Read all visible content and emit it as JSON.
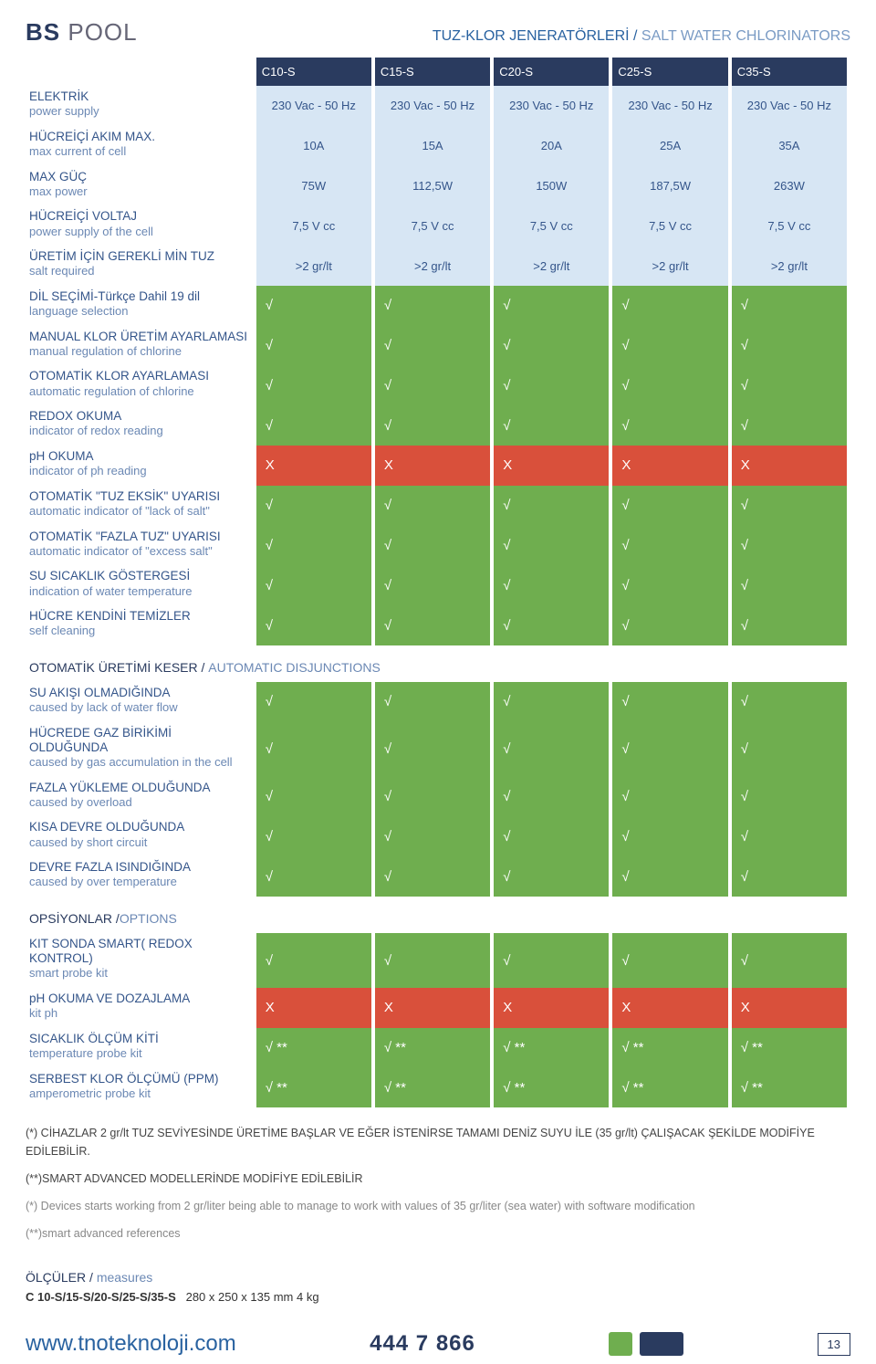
{
  "brand": {
    "logo1": "BS",
    "logo2": "POOL"
  },
  "page_title": {
    "tk": "TUZ-KLOR JENERATÖRLERİ",
    "en": "SALT WATER CHLORINATORS",
    "sep": " / "
  },
  "columns": [
    "C10-S",
    "C15-S",
    "C20-S",
    "C25-S",
    "C35-S"
  ],
  "specs": [
    {
      "tk": "ELEKTRİK",
      "en": "power supply",
      "v": [
        "230 Vac - 50 Hz",
        "230 Vac - 50 Hz",
        "230 Vac - 50 Hz",
        "230 Vac - 50 Hz",
        "230 Vac - 50 Hz"
      ]
    },
    {
      "tk": "HÜCREİÇİ AKIM MAX.",
      "en": "max current of cell",
      "v": [
        "10A",
        "15A",
        "20A",
        "25A",
        "35A"
      ]
    },
    {
      "tk": "MAX GÜÇ",
      "en": "max power",
      "v": [
        "75W",
        "112,5W",
        "150W",
        "187,5W",
        "263W"
      ]
    },
    {
      "tk": "HÜCREİÇİ VOLTAJ",
      "en": "power supply of the cell",
      "v": [
        "7,5 V cc",
        "7,5 V cc",
        "7,5 V cc",
        "7,5 V cc",
        "7,5 V cc"
      ]
    },
    {
      "tk": "ÜRETİM İÇİN GEREKLİ MİN TUZ",
      "en": "salt required",
      "v": [
        ">2 gr/lt",
        ">2 gr/lt",
        ">2 gr/lt",
        ">2 gr/lt",
        ">2 gr/lt"
      ]
    }
  ],
  "feat": [
    {
      "tk": "DİL SEÇİMİ-Türkçe Dahil 19 dil",
      "en": "language selection",
      "t": [
        "g",
        "g",
        "g",
        "g",
        "g"
      ],
      "s": [
        "√",
        "√",
        "√",
        "√",
        "√"
      ]
    },
    {
      "tk": "MANUAL KLOR ÜRETİM AYARLAMASI",
      "en": "manual regulation of chlorine",
      "t": [
        "g",
        "g",
        "g",
        "g",
        "g"
      ],
      "s": [
        "√",
        "√",
        "√",
        "√",
        "√"
      ]
    },
    {
      "tk": "OTOMATİK KLOR AYARLAMASI",
      "en": "automatic regulation of chlorine",
      "t": [
        "g",
        "g",
        "g",
        "g",
        "g"
      ],
      "s": [
        "√",
        "√",
        "√",
        "√",
        "√"
      ]
    },
    {
      "tk": "REDOX OKUMA",
      "en": "indicator of redox reading",
      "t": [
        "g",
        "g",
        "g",
        "g",
        "g"
      ],
      "s": [
        "√",
        "√",
        "√",
        "√",
        "√"
      ]
    },
    {
      "tk": "pH OKUMA",
      "en": "indicator of ph reading",
      "t": [
        "r",
        "r",
        "r",
        "r",
        "r"
      ],
      "s": [
        "X",
        "X",
        "X",
        "X",
        "X"
      ]
    },
    {
      "tk": "OTOMATİK \"TUZ EKSİK\" UYARISI",
      "en": "automatic indicator of \"lack of salt\"",
      "t": [
        "g",
        "g",
        "g",
        "g",
        "g"
      ],
      "s": [
        "√",
        "√",
        "√",
        "√",
        "√"
      ]
    },
    {
      "tk": "OTOMATİK \"FAZLA TUZ\" UYARISI",
      "en": "automatic indicator of \"excess salt\"",
      "t": [
        "g",
        "g",
        "g",
        "g",
        "g"
      ],
      "s": [
        "√",
        "√",
        "√",
        "√",
        "√"
      ]
    },
    {
      "tk": "SU SICAKLIK GÖSTERGESİ",
      "en": "indication of water temperature",
      "t": [
        "g",
        "g",
        "g",
        "g",
        "g"
      ],
      "s": [
        "√",
        "√",
        "√",
        "√",
        "√"
      ]
    },
    {
      "tk": "HÜCRE KENDİNİ TEMİZLER",
      "en": "self cleaning",
      "t": [
        "g",
        "g",
        "g",
        "g",
        "g"
      ],
      "s": [
        "√",
        "√",
        "√",
        "√",
        "√"
      ]
    }
  ],
  "sect2": {
    "tk": "OTOMATİK ÜRETİMİ KESER",
    "en": "AUTOMATIC DISJUNCTIONS",
    "sep": " / "
  },
  "disj": [
    {
      "tk": "SU AKIŞI OLMADIĞINDA",
      "en": "caused by lack of water flow",
      "t": [
        "g",
        "g",
        "g",
        "g",
        "g"
      ],
      "s": [
        "√",
        "√",
        "√",
        "√",
        "√"
      ]
    },
    {
      "tk": "HÜCREDE GAZ BİRİKİMİ OLDUĞUNDA",
      "en": "caused by gas accumulation in the cell",
      "t": [
        "g",
        "g",
        "g",
        "g",
        "g"
      ],
      "s": [
        "√",
        "√",
        "√",
        "√",
        "√"
      ]
    },
    {
      "tk": "FAZLA YÜKLEME OLDUĞUNDA",
      "en": "caused by overload",
      "t": [
        "g",
        "g",
        "g",
        "g",
        "g"
      ],
      "s": [
        "√",
        "√",
        "√",
        "√",
        "√"
      ]
    },
    {
      "tk": "KISA DEVRE OLDUĞUNDA",
      "en": "caused by short circuit",
      "t": [
        "g",
        "g",
        "g",
        "g",
        "g"
      ],
      "s": [
        "√",
        "√",
        "√",
        "√",
        "√"
      ]
    },
    {
      "tk": "DEVRE FAZLA ISINDIĞINDA",
      "en": "caused by over temperature",
      "t": [
        "g",
        "g",
        "g",
        "g",
        "g"
      ],
      "s": [
        "√",
        "√",
        "√",
        "√",
        "√"
      ]
    }
  ],
  "sect3": {
    "tk": "OPSİYONLAR /",
    "en": "OPTIONS"
  },
  "opts": [
    {
      "tk": "KIT SONDA SMART( REDOX KONTROL)",
      "en": "smart probe kit",
      "t": [
        "g",
        "g",
        "g",
        "g",
        "g"
      ],
      "s": [
        "√",
        "√",
        "√",
        "√",
        "√"
      ]
    },
    {
      "tk": "pH OKUMA VE DOZAJLAMA",
      "en": "kit ph",
      "t": [
        "r",
        "r",
        "r",
        "r",
        "r"
      ],
      "s": [
        "X",
        "X",
        "X",
        "X",
        "X"
      ]
    },
    {
      "tk": "SICAKLIK  ÖLÇÜM KİTİ",
      "en": "temperature probe kit",
      "t": [
        "g",
        "g",
        "g",
        "g",
        "g"
      ],
      "s": [
        "√ **",
        "√ **",
        "√ **",
        "√ **",
        "√ **"
      ]
    },
    {
      "tk": "SERBEST KLOR ÖLÇÜMÜ (PPM)",
      "en": "amperometric probe kit",
      "t": [
        "g",
        "g",
        "g",
        "g",
        "g"
      ],
      "s": [
        "√ **",
        "√ **",
        "√ **",
        "√ **",
        "√ **"
      ]
    }
  ],
  "notes": [
    {
      "cls": "",
      "txt": "(*) CİHAZLAR 2 gr/lt TUZ SEVİYESİNDE ÜRETİME BAŞLAR VE EĞER İSTENİRSE TAMAMI DENİZ SUYU İLE (35 gr/lt) ÇALIŞACAK ŞEKİLDE MODİFİYE EDİLEBİLİR."
    },
    {
      "cls": "",
      "txt": "(**)SMART ADVANCED MODELLERİNDE MODİFİYE EDİLEBİLİR"
    },
    {
      "cls": "en",
      "txt": "(*) Devices starts working from 2 gr/liter being able to manage to work with values of 35 gr/liter (sea water) with software modification"
    },
    {
      "cls": "en",
      "txt": "(**)smart advanced references"
    }
  ],
  "measures": {
    "tk": "ÖLÇÜLER / ",
    "en": "measures",
    "line": "C 10-S/15-S/20-S/25-S/35-S",
    "val": "280 x 250 x 135 mm  4 kg"
  },
  "footer": {
    "url": "www.tnoteknoloji.com",
    "phone": "444 7 866",
    "page": "13"
  },
  "colors": {
    "green": "#6fae4f",
    "red": "#d9503b",
    "blue": "#d7e6f4",
    "navy": "#2a3b5f"
  }
}
